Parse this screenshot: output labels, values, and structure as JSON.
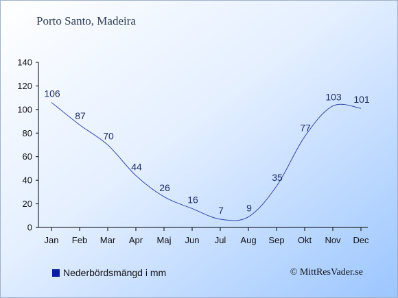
{
  "title": "Porto Santo, Madeira",
  "legend": {
    "label": "Nederbördsmängd i mm",
    "color": "#0a1fa0"
  },
  "copyright": "© MittResVader.se",
  "colors": {
    "line": "#3247a8",
    "label": "#1d2c64",
    "axis": "#000000"
  },
  "chart_data": {
    "type": "line",
    "title": "Porto Santo, Madeira",
    "xlabel": "",
    "ylabel": "",
    "categories": [
      "Jan",
      "Feb",
      "Mar",
      "Apr",
      "Maj",
      "Jun",
      "Jul",
      "Aug",
      "Sep",
      "Okt",
      "Nov",
      "Dec"
    ],
    "series": [
      {
        "name": "Nederbördsmängd i mm",
        "values": [
          106,
          87,
          70,
          44,
          26,
          16,
          7,
          9,
          35,
          77,
          103,
          101
        ]
      }
    ],
    "ylim": [
      0,
      140
    ],
    "yticks": [
      "0",
      "20",
      "40",
      "60",
      "80",
      "100",
      "120",
      "140"
    ],
    "grid": false,
    "legend_position": "bottom-left"
  }
}
